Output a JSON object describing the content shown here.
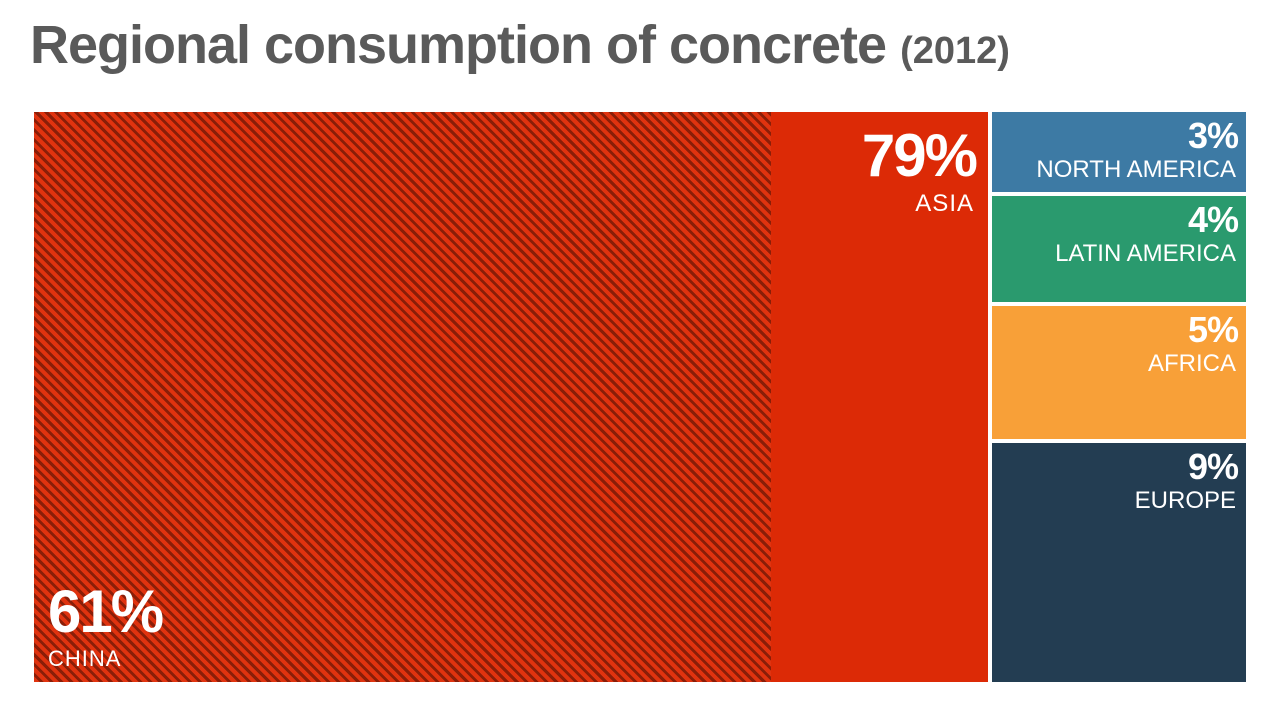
{
  "title": "Regional consumption of concrete",
  "title_year": "(2012)",
  "colors": {
    "asia": "#dc2a06",
    "china_stripe_light": "#e0330f",
    "china_stripe_dark": "#8a1e08",
    "north_america": "#3d7aa4",
    "latin_america": "#2a9a6e",
    "africa": "#f8a038",
    "europe": "#233d52"
  },
  "chart_data": {
    "type": "treemap",
    "unit": "%",
    "year": "2012",
    "regions": [
      {
        "key": "asia",
        "name": "ASIA",
        "value": 79,
        "label": "79%",
        "sub": {
          "key": "china",
          "name": "CHINA",
          "value": 61,
          "label": "61%"
        }
      },
      {
        "key": "north_america",
        "name": "NORTH AMERICA",
        "value": 3,
        "label": "3%"
      },
      {
        "key": "latin_america",
        "name": "LATIN AMERICA",
        "value": 4,
        "label": "4%"
      },
      {
        "key": "africa",
        "name": "AFRICA",
        "value": 5,
        "label": "5%"
      },
      {
        "key": "europe",
        "name": "EUROPE",
        "value": 9,
        "label": "9%"
      }
    ]
  }
}
